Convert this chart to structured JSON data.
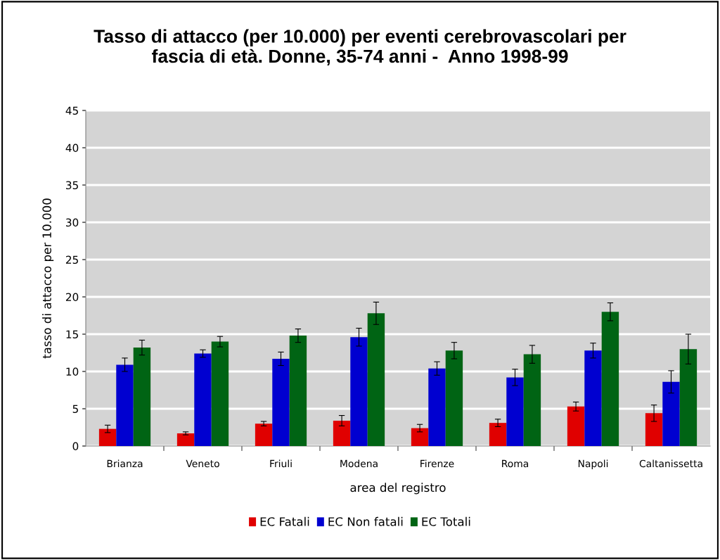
{
  "chart_data": {
    "type": "bar",
    "title": "Tasso di attacco (per 10.000) per eventi cerebrovascolari per\nfascia di età. Donne, 35-74 anni -  Anno 1998-99",
    "xlabel": "area del registro",
    "ylabel": "tasso di attacco per 10.000",
    "categories": [
      "Brianza",
      "Veneto",
      "Friuli",
      "Modena",
      "Firenze",
      "Roma",
      "Napoli",
      "Caltanissetta"
    ],
    "series": [
      {
        "name": "EC Fatali",
        "color": "#e00000",
        "values": [
          2.3,
          1.7,
          3.0,
          3.4,
          2.4,
          3.1,
          5.3,
          4.4
        ],
        "errors": [
          0.5,
          0.2,
          0.3,
          0.7,
          0.5,
          0.5,
          0.6,
          1.1
        ]
      },
      {
        "name": "EC Non fatali",
        "color": "#0000d0",
        "values": [
          10.9,
          12.4,
          11.7,
          14.6,
          10.4,
          9.2,
          12.8,
          8.6
        ],
        "errors": [
          0.9,
          0.5,
          0.9,
          1.2,
          0.9,
          1.1,
          1.0,
          1.5
        ]
      },
      {
        "name": "EC Totali",
        "color": "#006414",
        "values": [
          13.2,
          14.0,
          14.8,
          17.8,
          12.8,
          12.3,
          18.0,
          13.0
        ],
        "errors": [
          1.0,
          0.7,
          0.9,
          1.5,
          1.1,
          1.2,
          1.2,
          2.0
        ]
      }
    ],
    "ylim": [
      0,
      45
    ],
    "yticks": [
      0,
      5,
      10,
      15,
      20,
      25,
      30,
      35,
      40,
      45
    ],
    "grid": "y",
    "legend": "bottom"
  }
}
